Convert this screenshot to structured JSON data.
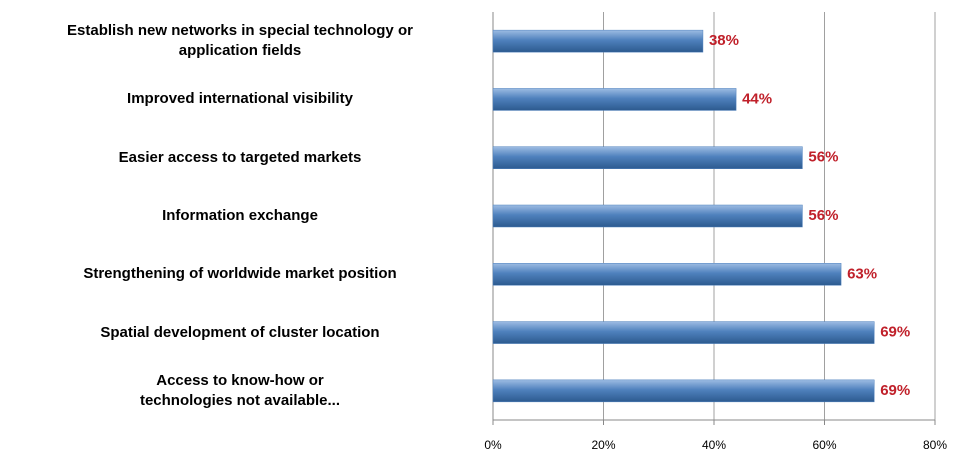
{
  "chart_data": {
    "type": "bar",
    "orientation": "horizontal",
    "categories": [
      "Establish new networks in special technology or\napplication fields",
      "Improved international visibility",
      "Easier access to targeted markets",
      "Information exchange",
      "Strengthening of worldwide market position",
      "Spatial development of cluster location",
      "Access to know-how or\ntechnologies not available..."
    ],
    "values": [
      38,
      44,
      56,
      56,
      63,
      69,
      69
    ],
    "value_labels": [
      "38%",
      "44%",
      "56%",
      "56%",
      "63%",
      "69%",
      "69%"
    ],
    "color": "#4f81bd",
    "xlim": [
      0,
      80
    ],
    "xticks": [
      {
        "value": 0,
        "label": "0%"
      },
      {
        "value": 20,
        "label": "20%"
      },
      {
        "value": 40,
        "label": "40%"
      },
      {
        "value": 60,
        "label": "60%"
      },
      {
        "value": 80,
        "label": "80%"
      }
    ],
    "grid": true
  }
}
